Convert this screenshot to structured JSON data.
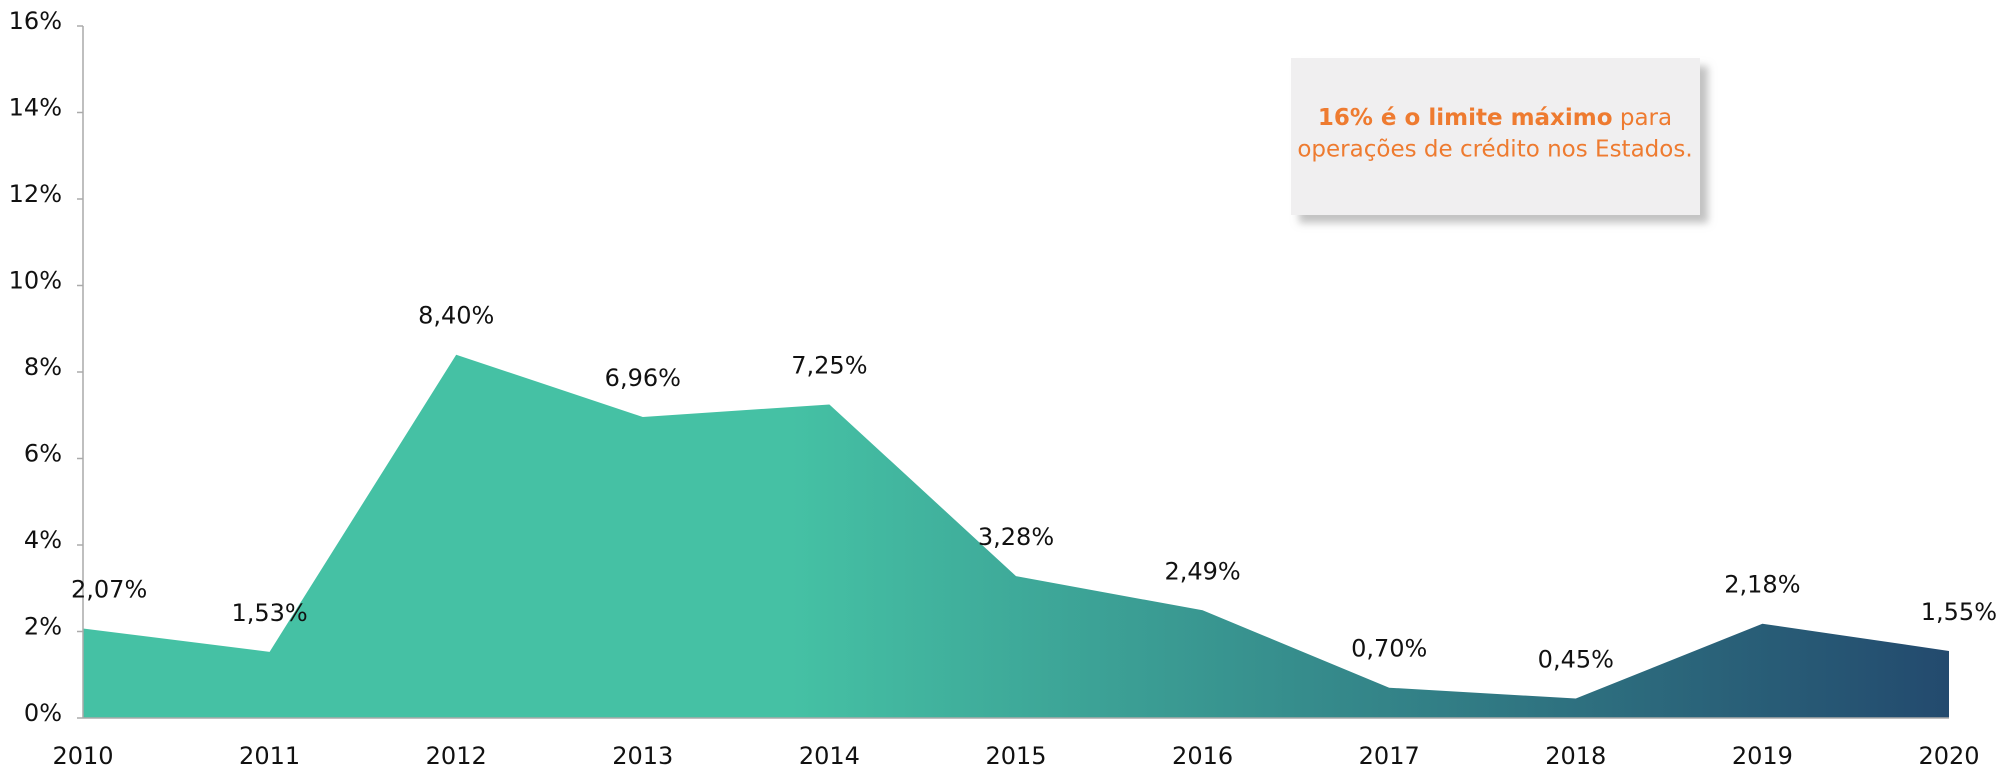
{
  "chart_data": {
    "type": "area",
    "categories": [
      "2010",
      "2011",
      "2012",
      "2013",
      "2014",
      "2015",
      "2016",
      "2017",
      "2018",
      "2019",
      "2020"
    ],
    "values": [
      2.07,
      1.53,
      8.4,
      6.96,
      7.25,
      3.28,
      2.49,
      0.7,
      0.45,
      2.18,
      1.55
    ],
    "value_labels": [
      "2,07%",
      "1,53%",
      "8,40%",
      "6,96%",
      "7,25%",
      "3,28%",
      "2,49%",
      "0,70%",
      "0,45%",
      "2,18%",
      "1,55%"
    ],
    "ylim": [
      0,
      16
    ],
    "yticks": [
      {
        "value": 0,
        "label": "0%"
      },
      {
        "value": 2,
        "label": "2%"
      },
      {
        "value": 4,
        "label": "4%"
      },
      {
        "value": 6,
        "label": "6%"
      },
      {
        "value": 8,
        "label": "8%"
      },
      {
        "value": 10,
        "label": "10%"
      },
      {
        "value": 12,
        "label": "12%"
      },
      {
        "value": 14,
        "label": "14%"
      },
      {
        "value": 16,
        "label": "16%"
      }
    ],
    "color_start": "#45c1a4",
    "color_end": "#234a6e",
    "annotation": {
      "bold": "16% é o limite máximo",
      "line1_rest": "para",
      "line2": "operações de crédito nos Estados."
    }
  }
}
